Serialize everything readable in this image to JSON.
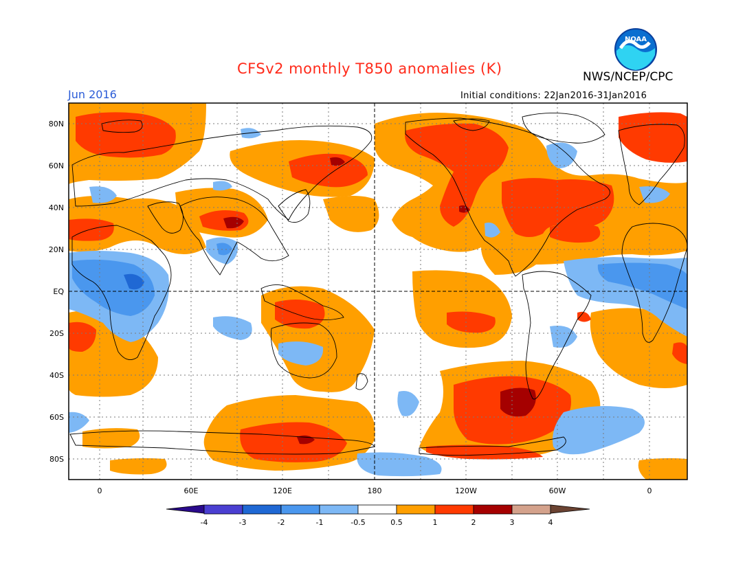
{
  "header": {
    "title": "CFSv2 monthly T850 anomalies (K)",
    "org": "NWS/NCEP/CPC",
    "month": "Jun 2016",
    "init_label": "Initial conditions: 22Jan2016-31Jan2016",
    "logo_text": "NOAA"
  },
  "map": {
    "projection": "cylindrical equidistant",
    "center_longitude": "180",
    "lat_labels": [
      "80N",
      "60N",
      "40N",
      "20N",
      "EQ",
      "20S",
      "40S",
      "60S",
      "80S"
    ],
    "lon_labels": [
      "0",
      "60E",
      "120E",
      "180",
      "120W",
      "60W",
      "0"
    ]
  },
  "legend": {
    "tick_labels": [
      "-4",
      "-3",
      "-2",
      "-1",
      "-0.5",
      "0.5",
      "1",
      "2",
      "3",
      "4"
    ],
    "colors": [
      "#2a0a8c",
      "#4a3fd1",
      "#1f68d4",
      "#4a97ee",
      "#7db8f5",
      "#ffffff",
      "#ff9f00",
      "#ff3a00",
      "#a50000",
      "#d4a28c",
      "#6b4332"
    ]
  },
  "colors": {
    "warm1": "#ff9f00",
    "warm2": "#ff3a00",
    "warm3": "#a50000",
    "cool1": "#7db8f5",
    "cool2": "#4a97ee",
    "cool3": "#1f68d4",
    "title": "#ff2a1a",
    "month": "#2a5bd7"
  }
}
